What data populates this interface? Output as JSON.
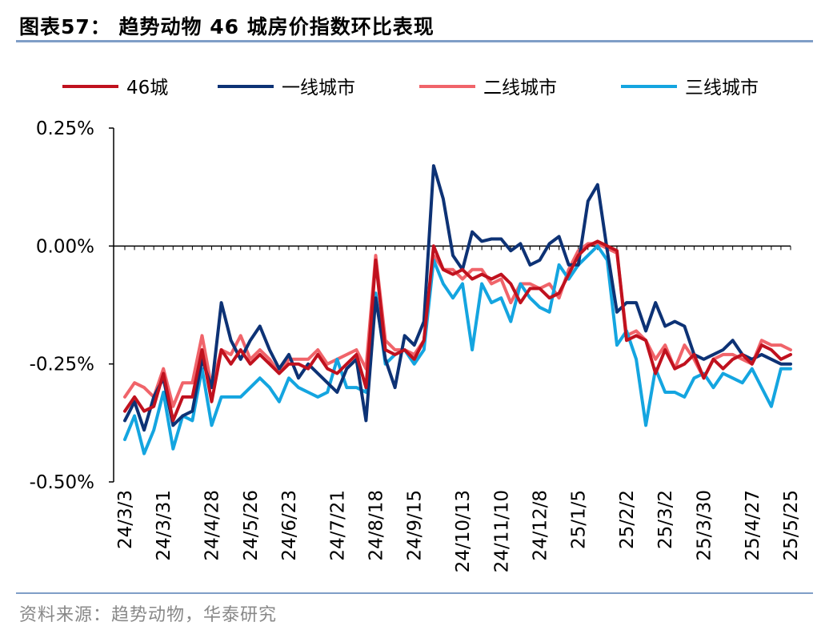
{
  "title": "图表57：  趋势动物 46 城房价指数环比表现",
  "source": "资料来源：趋势动物，华泰研究",
  "colors": {
    "46城": "#c0111e",
    "一线城市": "#0d3275",
    "二线城市": "#f0646a",
    "三线城市": "#14a5e0",
    "rule": "#7f9ec7"
  },
  "chart_data": {
    "type": "line",
    "ylim": [
      -0.5,
      0.25
    ],
    "yticks": [
      "0.25%",
      "0.00%",
      "-0.25%",
      "-0.50%"
    ],
    "ytick_values": [
      0.25,
      0.0,
      -0.25,
      -0.5
    ],
    "xticks": [
      "24/3/3",
      "24/3/31",
      "24/4/28",
      "24/5/26",
      "24/6/23",
      "24/7/21",
      "24/8/18",
      "24/9/15",
      "24/10/13",
      "24/11/10",
      "24/12/8",
      "25/1/5",
      "25/2/2",
      "25/3/2",
      "25/3/30",
      "25/4/27",
      "25/5/25"
    ],
    "legend_position": "top",
    "grid": false,
    "series": [
      {
        "name": "46城",
        "values": [
          -0.35,
          -0.32,
          -0.35,
          -0.34,
          -0.27,
          -0.37,
          -0.32,
          -0.32,
          -0.22,
          -0.33,
          -0.22,
          -0.25,
          -0.22,
          -0.25,
          -0.23,
          -0.25,
          -0.27,
          -0.25,
          -0.25,
          -0.26,
          -0.23,
          -0.26,
          -0.27,
          -0.25,
          -0.23,
          -0.3,
          -0.03,
          -0.22,
          -0.23,
          -0.22,
          -0.24,
          -0.2,
          0.0,
          -0.05,
          -0.06,
          -0.05,
          -0.07,
          -0.06,
          -0.07,
          -0.06,
          -0.08,
          -0.12,
          -0.09,
          -0.09,
          -0.11,
          -0.1,
          -0.06,
          -0.02,
          0.0,
          0.01,
          0.0,
          -0.01,
          -0.2,
          -0.19,
          -0.2,
          -0.27,
          -0.22,
          -0.26,
          -0.25,
          -0.23,
          -0.28,
          -0.24,
          -0.26,
          -0.24,
          -0.23,
          -0.25,
          -0.21,
          -0.22,
          -0.24,
          -0.23
        ]
      },
      {
        "name": "一线城市",
        "values": [
          -0.37,
          -0.33,
          -0.39,
          -0.32,
          -0.28,
          -0.38,
          -0.36,
          -0.35,
          -0.24,
          -0.3,
          -0.12,
          -0.2,
          -0.24,
          -0.2,
          -0.17,
          -0.22,
          -0.26,
          -0.23,
          -0.28,
          -0.25,
          -0.27,
          -0.29,
          -0.31,
          -0.26,
          -0.24,
          -0.37,
          -0.11,
          -0.24,
          -0.3,
          -0.19,
          -0.21,
          -0.16,
          0.17,
          0.1,
          -0.02,
          -0.05,
          0.03,
          0.01,
          0.015,
          0.015,
          -0.01,
          0.005,
          -0.04,
          -0.03,
          0.005,
          0.02,
          -0.04,
          -0.04,
          0.095,
          0.13,
          -0.01,
          -0.14,
          -0.12,
          -0.12,
          -0.18,
          -0.12,
          -0.17,
          -0.16,
          -0.17,
          -0.23,
          -0.24,
          -0.23,
          -0.22,
          -0.2,
          -0.23,
          -0.24,
          -0.23,
          -0.24,
          -0.25,
          -0.25
        ]
      },
      {
        "name": "二线城市",
        "values": [
          -0.32,
          -0.29,
          -0.3,
          -0.32,
          -0.26,
          -0.34,
          -0.29,
          -0.29,
          -0.19,
          -0.3,
          -0.22,
          -0.23,
          -0.19,
          -0.24,
          -0.22,
          -0.24,
          -0.27,
          -0.24,
          -0.24,
          -0.24,
          -0.22,
          -0.25,
          -0.24,
          -0.23,
          -0.22,
          -0.26,
          -0.02,
          -0.2,
          -0.22,
          -0.22,
          -0.23,
          -0.2,
          -0.02,
          -0.05,
          -0.05,
          -0.07,
          -0.05,
          -0.05,
          -0.08,
          -0.07,
          -0.12,
          -0.08,
          -0.08,
          -0.09,
          -0.08,
          -0.11,
          -0.05,
          -0.01,
          0.005,
          0.005,
          -0.005,
          -0.015,
          -0.19,
          -0.18,
          -0.2,
          -0.24,
          -0.21,
          -0.26,
          -0.21,
          -0.24,
          -0.28,
          -0.24,
          -0.23,
          -0.23,
          -0.24,
          -0.25,
          -0.2,
          -0.21,
          -0.21,
          -0.22
        ]
      },
      {
        "name": "三线城市",
        "values": [
          -0.41,
          -0.36,
          -0.44,
          -0.39,
          -0.31,
          -0.43,
          -0.36,
          -0.37,
          -0.26,
          -0.38,
          -0.32,
          -0.32,
          -0.32,
          -0.3,
          -0.28,
          -0.3,
          -0.33,
          -0.28,
          -0.3,
          -0.31,
          -0.32,
          -0.31,
          -0.24,
          -0.3,
          -0.3,
          -0.31,
          -0.1,
          -0.25,
          -0.23,
          -0.22,
          -0.25,
          -0.22,
          -0.03,
          -0.08,
          -0.11,
          -0.08,
          -0.22,
          -0.08,
          -0.12,
          -0.11,
          -0.16,
          -0.08,
          -0.11,
          -0.13,
          -0.14,
          -0.04,
          -0.07,
          -0.04,
          -0.02,
          0.0,
          -0.03,
          -0.21,
          -0.18,
          -0.24,
          -0.38,
          -0.26,
          -0.31,
          -0.31,
          -0.32,
          -0.28,
          -0.27,
          -0.3,
          -0.27,
          -0.28,
          -0.29,
          -0.26,
          -0.3,
          -0.34,
          -0.26,
          -0.26
        ]
      }
    ]
  }
}
